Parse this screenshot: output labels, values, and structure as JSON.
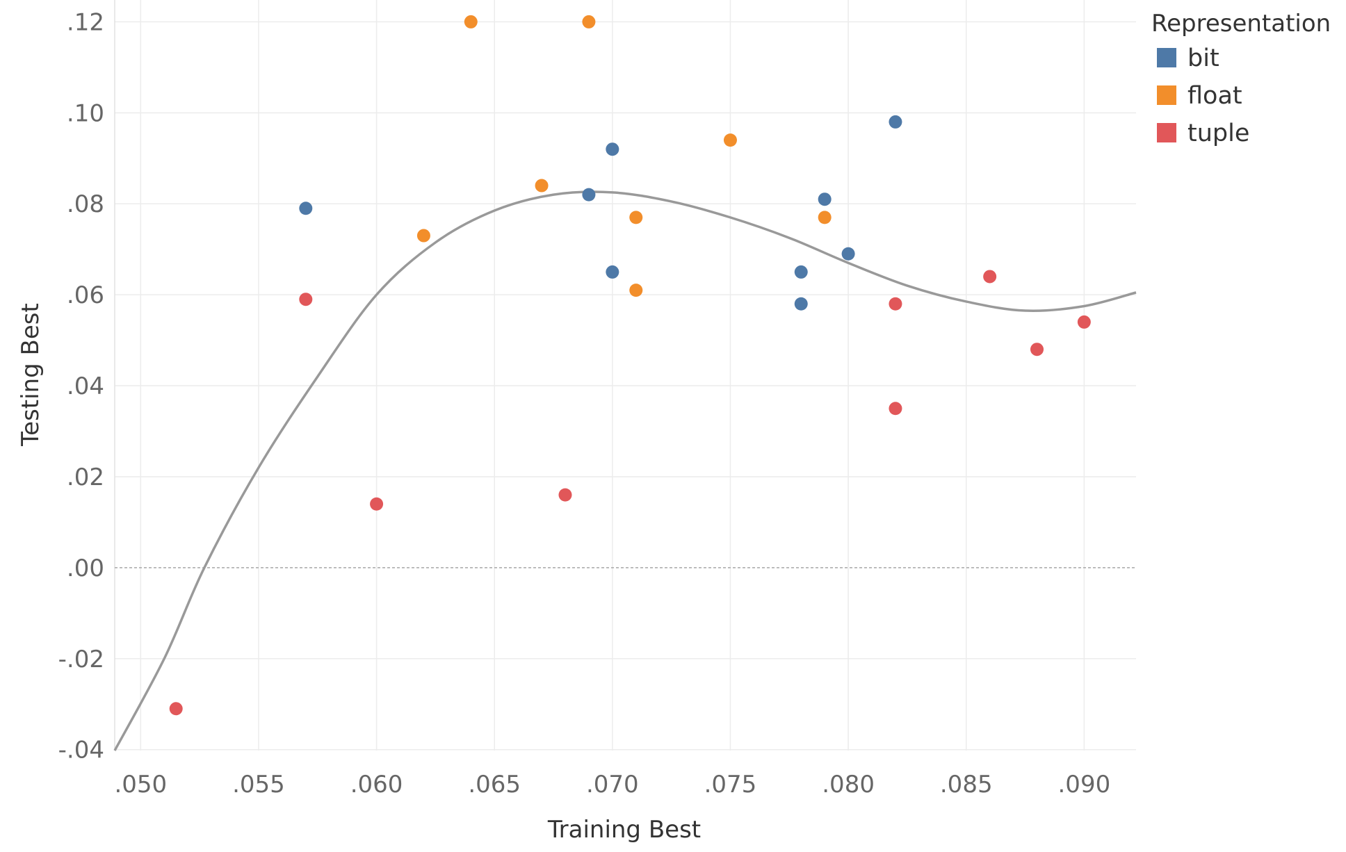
{
  "chart_data": {
    "type": "scatter",
    "title": "",
    "xlabel": "Training Best",
    "ylabel": "Testing Best",
    "xlim": [
      0.0489,
      0.0922
    ],
    "ylim": [
      -0.0402,
      0.1248
    ],
    "x_ticks": [
      0.05,
      0.055,
      0.06,
      0.065,
      0.07,
      0.075,
      0.08,
      0.085,
      0.09
    ],
    "x_tick_labels": [
      ".050",
      ".055",
      ".060",
      ".065",
      ".070",
      ".075",
      ".080",
      ".085",
      ".090"
    ],
    "y_ticks": [
      -0.04,
      -0.02,
      0.0,
      0.02,
      0.04,
      0.06,
      0.08,
      0.1,
      0.12
    ],
    "y_tick_labels": [
      "-.04",
      "-.02",
      ".00",
      ".02",
      ".04",
      ".06",
      ".08",
      ".10",
      ".12"
    ],
    "grid": true,
    "zero_line": true,
    "legend": {
      "title": "Representation",
      "position": "top-right"
    },
    "series": [
      {
        "name": "bit",
        "color": "#4e79a7",
        "points": [
          {
            "x": 0.057,
            "y": 0.079
          },
          {
            "x": 0.069,
            "y": 0.082
          },
          {
            "x": 0.07,
            "y": 0.092
          },
          {
            "x": 0.07,
            "y": 0.065
          },
          {
            "x": 0.078,
            "y": 0.065
          },
          {
            "x": 0.078,
            "y": 0.058
          },
          {
            "x": 0.079,
            "y": 0.081
          },
          {
            "x": 0.08,
            "y": 0.069
          },
          {
            "x": 0.082,
            "y": 0.098
          }
        ]
      },
      {
        "name": "float",
        "color": "#f28e2b",
        "points": [
          {
            "x": 0.062,
            "y": 0.073
          },
          {
            "x": 0.064,
            "y": 0.12
          },
          {
            "x": 0.067,
            "y": 0.084
          },
          {
            "x": 0.069,
            "y": 0.12
          },
          {
            "x": 0.071,
            "y": 0.077
          },
          {
            "x": 0.071,
            "y": 0.061
          },
          {
            "x": 0.075,
            "y": 0.094
          },
          {
            "x": 0.079,
            "y": 0.077
          }
        ]
      },
      {
        "name": "tuple",
        "color": "#e15759",
        "points": [
          {
            "x": 0.0515,
            "y": -0.031
          },
          {
            "x": 0.057,
            "y": 0.059
          },
          {
            "x": 0.06,
            "y": 0.014
          },
          {
            "x": 0.068,
            "y": 0.016
          },
          {
            "x": 0.082,
            "y": 0.058
          },
          {
            "x": 0.082,
            "y": 0.035
          },
          {
            "x": 0.086,
            "y": 0.064
          },
          {
            "x": 0.088,
            "y": 0.048
          },
          {
            "x": 0.09,
            "y": 0.054
          }
        ]
      }
    ],
    "trend_line": {
      "type": "polynomial",
      "color": "#999999",
      "points": [
        {
          "x": 0.0489,
          "y": -0.0402
        },
        {
          "x": 0.051,
          "y": -0.02
        },
        {
          "x": 0.0527,
          "y": 0.0
        },
        {
          "x": 0.055,
          "y": 0.022
        },
        {
          "x": 0.0575,
          "y": 0.042
        },
        {
          "x": 0.06,
          "y": 0.06
        },
        {
          "x": 0.0625,
          "y": 0.0715
        },
        {
          "x": 0.065,
          "y": 0.0785
        },
        {
          "x": 0.0675,
          "y": 0.082
        },
        {
          "x": 0.07,
          "y": 0.0825
        },
        {
          "x": 0.0725,
          "y": 0.0805
        },
        {
          "x": 0.075,
          "y": 0.077
        },
        {
          "x": 0.0775,
          "y": 0.0725
        },
        {
          "x": 0.08,
          "y": 0.067
        },
        {
          "x": 0.0825,
          "y": 0.062
        },
        {
          "x": 0.085,
          "y": 0.0585
        },
        {
          "x": 0.0875,
          "y": 0.0565
        },
        {
          "x": 0.09,
          "y": 0.0575
        },
        {
          "x": 0.0922,
          "y": 0.0605
        }
      ]
    }
  }
}
